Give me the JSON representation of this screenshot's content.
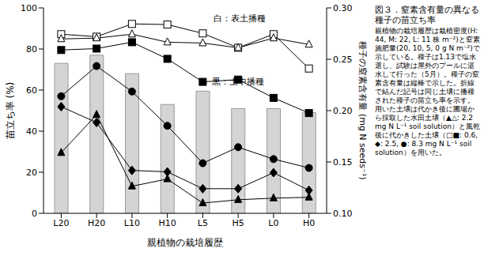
{
  "chart_data": {
    "type": "bar_line",
    "title": "図３．窒素含有量の異なる種子の苗立ち率",
    "subtitle": "親植物の栽培履歴は栽植密度(H: 44, M: 22, L: 11 株 m⁻²)と窒素施肥量(20, 10, 5, 0 g N m⁻²)で示している。種子は1.13で塩水選し、試験は屋外のプールに湛水して行った（5月）。種子の窒素含有量は縦棒で示した。折線で結んだ記号は同じ土壌に播種された種子の苗立ち率を示す。用いた土壌は代かき後に圃場から採取した水田土壌（▲△: 2.2 mg N L⁻¹ soil solution）と風乾後に代かきした土壌（□■: 0.6, ◆: 2.5, ●: 8.3 mg N L⁻¹ soil solution）を用いた。",
    "xlabel": "親植物の栽培履歴",
    "ylabel": "苗立ち率 (%)",
    "y2label": "種子の窒素含有量 (mg N seeds⁻¹)",
    "annotations": [
      "白：表土播種",
      "黒：土中播種"
    ],
    "categories": [
      "L20",
      "H20",
      "L10",
      "H10",
      "L5",
      "H5",
      "L0",
      "H0"
    ],
    "ylim": [
      0,
      100
    ],
    "yticks": [
      0,
      20,
      40,
      60,
      80,
      100
    ],
    "y2lim": [
      0.1,
      0.3
    ],
    "y2ticks": [
      {
        "value": 0.1,
        "label": "0.10"
      },
      0.15,
      {
        "value": 0.2,
        "label": "0.20"
      },
      0.25,
      {
        "value": 0.3,
        "label": "0.30"
      }
    ],
    "series": [
      {
        "type": "bar",
        "axis": "y2",
        "color": "#d4d4d4",
        "values": [
          0.246,
          0.254,
          0.236,
          0.206,
          0.219,
          0.202,
          0.202,
          0.198
        ]
      },
      {
        "type": "line",
        "marker": "square_open",
        "color": "#000000",
        "values": [
          87.2,
          86.0,
          92.2,
          91.9,
          87.6,
          80.6,
          87.2,
          70.5
        ]
      },
      {
        "type": "line",
        "marker": "triangle_open",
        "color": "#000000",
        "values": [
          84.9,
          85.3,
          87.2,
          83.3,
          82.9,
          80.6,
          85.3,
          82.2
        ]
      },
      {
        "type": "line",
        "marker": "square",
        "color": "#000000",
        "values": [
          79.5,
          80.2,
          83.3,
          75.2,
          64.0,
          65.1,
          56.2,
          48.8
        ]
      },
      {
        "type": "line",
        "marker": "circle",
        "color": "#000000",
        "values": [
          57.0,
          71.7,
          59.3,
          42.6,
          24.4,
          32.2,
          26.4,
          22.1
        ]
      },
      {
        "type": "line",
        "marker": "diamond",
        "color": "#000000",
        "values": [
          51.9,
          44.2,
          20.9,
          20.2,
          12.0,
          12.0,
          19.8,
          11.2
        ]
      },
      {
        "type": "line",
        "marker": "triangle",
        "color": "#000000",
        "values": [
          29.5,
          48.0,
          13.2,
          16.7,
          5.0,
          6.6,
          7.4,
          7.8
        ]
      }
    ]
  }
}
